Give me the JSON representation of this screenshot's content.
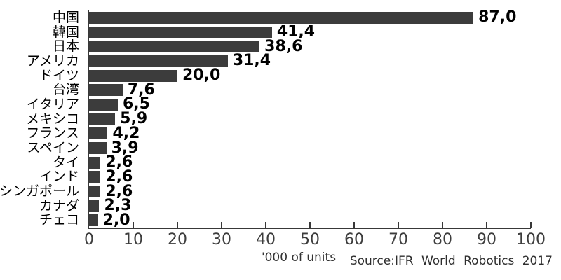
{
  "chart_data": {
    "type": "bar",
    "orientation": "horizontal",
    "categories": [
      "中国",
      "韓国",
      "日本",
      "アメリカ",
      "ドイツ",
      "台湾",
      "イタリア",
      "メキシコ",
      "フランス",
      "スペイン",
      "タイ",
      "インド",
      "シンガポール",
      "カナダ",
      "チェコ"
    ],
    "values": [
      87.0,
      41.4,
      38.6,
      31.4,
      20.0,
      7.6,
      6.5,
      5.9,
      4.2,
      3.9,
      2.6,
      2.6,
      2.6,
      2.3,
      2.0
    ],
    "value_labels": [
      "87,0",
      "41,4",
      "38,6",
      "31,4",
      "20,0",
      "7,6",
      "6,5",
      "5,9",
      "4,2",
      "3,9",
      "2,6",
      "2,6",
      "2,6",
      "2,3",
      "2,0"
    ],
    "title": "",
    "xlabel": "'000 of units",
    "ylabel": "",
    "xlim": [
      0,
      100
    ],
    "xticks": [
      0,
      10,
      20,
      30,
      40,
      50,
      60,
      70,
      80,
      90,
      100
    ],
    "grid": false,
    "legend": null,
    "source": "Source:IFR World Robotics 2017",
    "bar_color": "#3c3c3c",
    "axis_color": "#383838"
  }
}
